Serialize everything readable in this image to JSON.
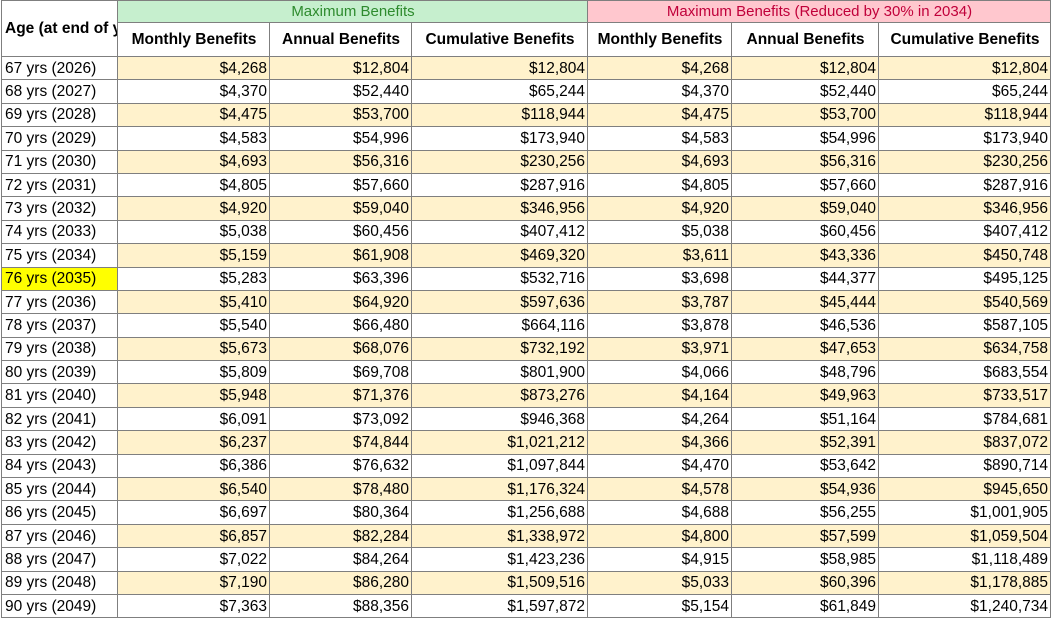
{
  "header": {
    "age_label": "Age (at end of year)",
    "group_max": "Maximum Benefits",
    "group_reduced": "Maximum Benefits (Reduced by 30% in 2034)",
    "columns": [
      "Monthly Benefits",
      "Annual Benefits",
      "Cumulative Benefits",
      "Monthly Benefits",
      "Annual Benefits",
      "Cumulative Benefits"
    ]
  },
  "highlight_color": "#ffff00",
  "stripe_color": "#fff2cc",
  "highlighted_age": "76 yrs (2035)",
  "rows": [
    [
      "67 yrs (2026)",
      "$4,268",
      "$12,804",
      "$12,804",
      "$4,268",
      "$12,804",
      "$12,804"
    ],
    [
      "68 yrs (2027)",
      "$4,370",
      "$52,440",
      "$65,244",
      "$4,370",
      "$52,440",
      "$65,244"
    ],
    [
      "69 yrs (2028)",
      "$4,475",
      "$53,700",
      "$118,944",
      "$4,475",
      "$53,700",
      "$118,944"
    ],
    [
      "70 yrs (2029)",
      "$4,583",
      "$54,996",
      "$173,940",
      "$4,583",
      "$54,996",
      "$173,940"
    ],
    [
      "71 yrs (2030)",
      "$4,693",
      "$56,316",
      "$230,256",
      "$4,693",
      "$56,316",
      "$230,256"
    ],
    [
      "72 yrs (2031)",
      "$4,805",
      "$57,660",
      "$287,916",
      "$4,805",
      "$57,660",
      "$287,916"
    ],
    [
      "73 yrs (2032)",
      "$4,920",
      "$59,040",
      "$346,956",
      "$4,920",
      "$59,040",
      "$346,956"
    ],
    [
      "74 yrs (2033)",
      "$5,038",
      "$60,456",
      "$407,412",
      "$5,038",
      "$60,456",
      "$407,412"
    ],
    [
      "75 yrs (2034)",
      "$5,159",
      "$61,908",
      "$469,320",
      "$3,611",
      "$43,336",
      "$450,748"
    ],
    [
      "76 yrs (2035)",
      "$5,283",
      "$63,396",
      "$532,716",
      "$3,698",
      "$44,377",
      "$495,125"
    ],
    [
      "77 yrs (2036)",
      "$5,410",
      "$64,920",
      "$597,636",
      "$3,787",
      "$45,444",
      "$540,569"
    ],
    [
      "78 yrs (2037)",
      "$5,540",
      "$66,480",
      "$664,116",
      "$3,878",
      "$46,536",
      "$587,105"
    ],
    [
      "79 yrs (2038)",
      "$5,673",
      "$68,076",
      "$732,192",
      "$3,971",
      "$47,653",
      "$634,758"
    ],
    [
      "80 yrs (2039)",
      "$5,809",
      "$69,708",
      "$801,900",
      "$4,066",
      "$48,796",
      "$683,554"
    ],
    [
      "81 yrs (2040)",
      "$5,948",
      "$71,376",
      "$873,276",
      "$4,164",
      "$49,963",
      "$733,517"
    ],
    [
      "82 yrs (2041)",
      "$6,091",
      "$73,092",
      "$946,368",
      "$4,264",
      "$51,164",
      "$784,681"
    ],
    [
      "83 yrs (2042)",
      "$6,237",
      "$74,844",
      "$1,021,212",
      "$4,366",
      "$52,391",
      "$837,072"
    ],
    [
      "84 yrs (2043)",
      "$6,386",
      "$76,632",
      "$1,097,844",
      "$4,470",
      "$53,642",
      "$890,714"
    ],
    [
      "85 yrs (2044)",
      "$6,540",
      "$78,480",
      "$1,176,324",
      "$4,578",
      "$54,936",
      "$945,650"
    ],
    [
      "86 yrs (2045)",
      "$6,697",
      "$80,364",
      "$1,256,688",
      "$4,688",
      "$56,255",
      "$1,001,905"
    ],
    [
      "87 yrs (2046)",
      "$6,857",
      "$82,284",
      "$1,338,972",
      "$4,800",
      "$57,599",
      "$1,059,504"
    ],
    [
      "88 yrs (2047)",
      "$7,022",
      "$84,264",
      "$1,423,236",
      "$4,915",
      "$58,985",
      "$1,118,489"
    ],
    [
      "89 yrs (2048)",
      "$7,190",
      "$86,280",
      "$1,509,516",
      "$5,033",
      "$60,396",
      "$1,178,885"
    ],
    [
      "90 yrs (2049)",
      "$7,363",
      "$88,356",
      "$1,597,872",
      "$5,154",
      "$61,849",
      "$1,240,734"
    ]
  ]
}
